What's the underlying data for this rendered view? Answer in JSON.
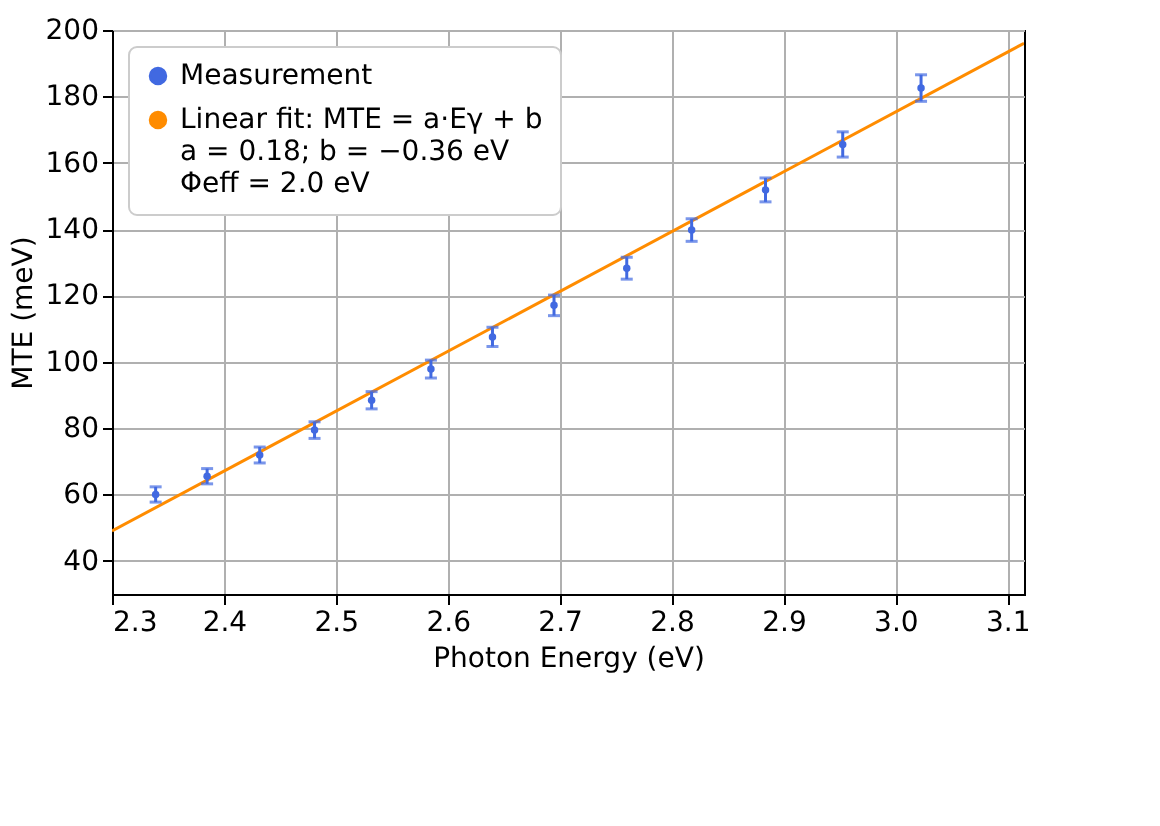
{
  "chart_data": {
    "type": "scatter",
    "xlabel": "Photon Energy (eV)",
    "ylabel": "MTE (meV)",
    "xlim": [
      2.3,
      3.115
    ],
    "xticks": [
      2.3,
      2.4,
      2.5,
      2.6,
      2.7,
      2.8,
      2.9,
      {
        "value": 3.0,
        "label": "3.0"
      },
      3.1
    ],
    "ylim": [
      30,
      200
    ],
    "yticks": [
      40,
      60,
      80,
      100,
      120,
      140,
      160,
      180,
      200
    ],
    "grid": true,
    "legend": "top left",
    "series": [
      {
        "name": "Measurement",
        "marker": "circle",
        "color": "#4169e1",
        "x": [
          2.339,
          2.385,
          2.432,
          2.481,
          2.532,
          2.585,
          2.64,
          2.695,
          2.76,
          2.818,
          2.884,
          2.953,
          3.023
        ],
        "values": [
          60.0,
          65.5,
          71.9,
          79.4,
          88.4,
          97.8,
          107.5,
          117,
          128.2,
          139.7,
          151.8,
          165.5,
          182.5
        ],
        "errors": [
          2.3,
          2.3,
          2.4,
          2.5,
          2.6,
          2.7,
          2.9,
          3.1,
          3.3,
          3.4,
          3.6,
          3.8,
          4.0
        ]
      },
      {
        "name": "Linear fit: MTE = a·Eγ + b\na = 0.18; b = −0.36 eV\nΦeff = 2.0 eV",
        "type": "line",
        "line_style": "solid",
        "color": "#ff8c00",
        "x": [
          2.3,
          3.115
        ],
        "values": [
          49,
          196
        ]
      }
    ]
  }
}
